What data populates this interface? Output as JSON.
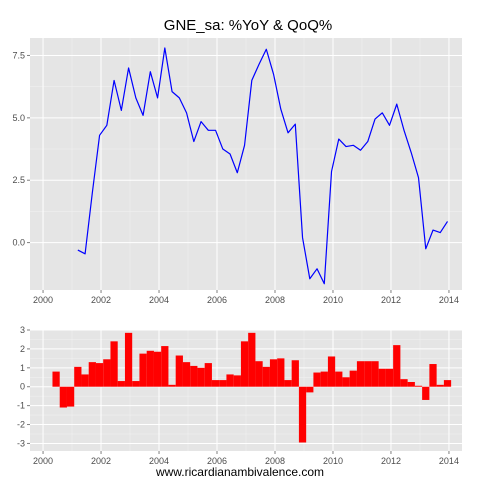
{
  "title": "GNE_sa: %YoY & QoQ%",
  "footer": "www.ricardianambivalence.com",
  "colors": {
    "panel": "#e5e5e5",
    "grid_major": "#ffffff",
    "grid_minor": "#f2f2f2",
    "line": "#0000ff",
    "bar": "#ff0000",
    "text": "#4d4d4d"
  },
  "chart_data": [
    {
      "type": "line",
      "title": "GNE_sa: %YoY & QoQ%",
      "xlabel": "",
      "ylabel": "",
      "xlim": [
        1999.55,
        2014.45
      ],
      "ylim": [
        -1.9,
        8.2
      ],
      "xticks": [
        2000,
        2002,
        2004,
        2006,
        2008,
        2010,
        2012,
        2014
      ],
      "xtick_labels": [
        "2000",
        "2002",
        "2004",
        "2006",
        "2008",
        "2010",
        "2012",
        "2014"
      ],
      "yticks": [
        0,
        2.5,
        5,
        7.5
      ],
      "ytick_labels": [
        "0.0",
        "2.5",
        "5.0",
        "7.5"
      ],
      "grid": true,
      "series": [
        {
          "color": "#0000ff",
          "x": [
            2001.2,
            2001.45,
            2001.7,
            2001.95,
            2002.2,
            2002.45,
            2002.7,
            2002.95,
            2003.2,
            2003.45,
            2003.7,
            2003.95,
            2004.2,
            2004.45,
            2004.7,
            2004.95,
            2005.2,
            2005.45,
            2005.7,
            2005.95,
            2006.2,
            2006.45,
            2006.7,
            2006.95,
            2007.2,
            2007.45,
            2007.7,
            2007.95,
            2008.2,
            2008.45,
            2008.7,
            2008.95,
            2009.2,
            2009.45,
            2009.7,
            2009.95,
            2010.2,
            2010.45,
            2010.7,
            2010.95,
            2011.2,
            2011.45,
            2011.7,
            2011.95,
            2012.2,
            2012.45,
            2012.7,
            2012.95,
            2013.2,
            2013.45,
            2013.7,
            2013.95
          ],
          "y": [
            -0.3,
            -0.45,
            2.0,
            4.3,
            4.7,
            6.5,
            5.3,
            7.0,
            5.8,
            5.1,
            6.85,
            5.8,
            7.8,
            6.05,
            5.8,
            5.2,
            4.05,
            4.85,
            4.5,
            4.5,
            3.75,
            3.55,
            2.8,
            3.9,
            6.5,
            7.15,
            7.75,
            6.75,
            5.35,
            4.4,
            4.75,
            0.2,
            -1.45,
            -1.05,
            -1.65,
            2.85,
            4.15,
            3.85,
            3.9,
            3.7,
            4.05,
            4.95,
            5.2,
            4.7,
            5.55,
            4.5,
            3.6,
            2.6,
            -0.25,
            0.5,
            0.4,
            0.85
          ]
        }
      ]
    },
    {
      "type": "bar",
      "title": "",
      "xlabel": "",
      "ylabel": "",
      "xlim": [
        1999.55,
        2014.45
      ],
      "ylim": [
        -3.4,
        3.0
      ],
      "xticks": [
        2000,
        2002,
        2004,
        2006,
        2008,
        2010,
        2012,
        2014
      ],
      "xtick_labels": [
        "2000",
        "2002",
        "2004",
        "2006",
        "2008",
        "2010",
        "2012",
        "2014"
      ],
      "yticks": [
        -3,
        -2,
        -1,
        0,
        1,
        2,
        3
      ],
      "ytick_labels": [
        "-3",
        "-2",
        "-1",
        "0",
        "1",
        "2",
        "3"
      ],
      "grid": true,
      "series": [
        {
          "color": "#ff0000",
          "x": [
            2000.45,
            2000.7,
            2000.95,
            2001.2,
            2001.45,
            2001.7,
            2001.95,
            2002.2,
            2002.45,
            2002.7,
            2002.95,
            2003.2,
            2003.45,
            2003.7,
            2003.95,
            2004.2,
            2004.45,
            2004.7,
            2004.95,
            2005.2,
            2005.45,
            2005.7,
            2005.95,
            2006.2,
            2006.45,
            2006.7,
            2006.95,
            2007.2,
            2007.45,
            2007.7,
            2007.95,
            2008.2,
            2008.45,
            2008.7,
            2008.95,
            2009.2,
            2009.45,
            2009.7,
            2009.95,
            2010.2,
            2010.45,
            2010.7,
            2010.95,
            2011.2,
            2011.45,
            2011.7,
            2011.95,
            2012.2,
            2012.45,
            2012.7,
            2012.95,
            2013.2,
            2013.45,
            2013.7,
            2013.95
          ],
          "values": [
            0.8,
            -1.1,
            -1.05,
            1.05,
            0.65,
            1.3,
            1.25,
            1.45,
            2.4,
            0.3,
            2.85,
            0.3,
            1.75,
            1.9,
            1.85,
            2.15,
            0.1,
            1.65,
            1.3,
            1.1,
            1.0,
            1.25,
            0.35,
            0.35,
            0.65,
            0.6,
            2.4,
            2.85,
            1.35,
            1.05,
            1.45,
            1.5,
            0.35,
            1.4,
            -2.95,
            -0.3,
            0.75,
            0.8,
            1.6,
            0.8,
            0.5,
            0.85,
            1.35,
            1.35,
            1.35,
            0.95,
            0.95,
            2.2,
            0.4,
            0.25,
            0.05,
            -0.7,
            1.2,
            0.1,
            0.35
          ]
        }
      ]
    }
  ]
}
